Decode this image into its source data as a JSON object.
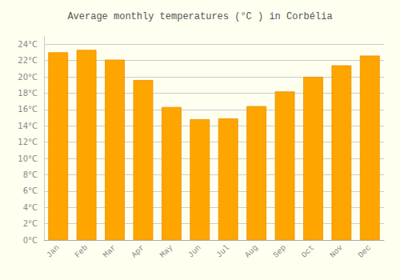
{
  "chart_data": {
    "type": "bar",
    "title": "Average monthly temperatures (°C ) in Corbélia",
    "categories": [
      "Jan",
      "Feb",
      "Mar",
      "Apr",
      "May",
      "Jun",
      "Jul",
      "Aug",
      "Sep",
      "Oct",
      "Nov",
      "Dec"
    ],
    "values": [
      23.0,
      23.3,
      22.1,
      19.6,
      16.3,
      14.8,
      14.9,
      16.4,
      18.2,
      20.0,
      21.4,
      22.6
    ],
    "color": "#FFA500",
    "ylim": [
      0,
      25
    ],
    "yticks": [
      {
        "value": 0,
        "label": "0°C"
      },
      {
        "value": 2,
        "label": "2°C"
      },
      {
        "value": 4,
        "label": "4°C"
      },
      {
        "value": 6,
        "label": "6°C"
      },
      {
        "value": 8,
        "label": "8°C"
      },
      {
        "value": 10,
        "label": "10°C"
      },
      {
        "value": 12,
        "label": "12°C"
      },
      {
        "value": 14,
        "label": "14°C"
      },
      {
        "value": 16,
        "label": "16°C"
      },
      {
        "value": 18,
        "label": "18°C"
      },
      {
        "value": 20,
        "label": "20°C"
      },
      {
        "value": 22,
        "label": "22°C"
      },
      {
        "value": 24,
        "label": "24°C"
      }
    ],
    "grid": true
  }
}
